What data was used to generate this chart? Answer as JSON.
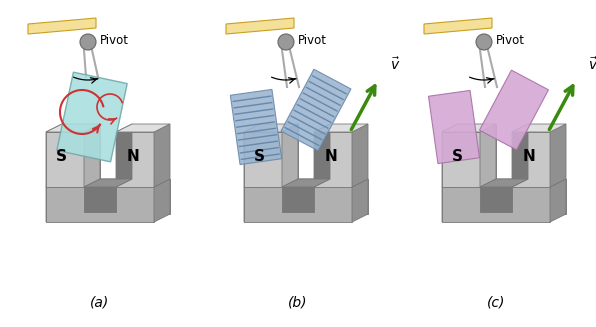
{
  "bg_color": "#ffffff",
  "pivot_bar_color": "#f5e099",
  "string_color": "#aaaaaa",
  "ball_color": "#999999",
  "top_color": "#e0e0e0",
  "front_color": "#c8c8c8",
  "side_color": "#b0b0b0",
  "dark_color": "#909090",
  "inner_color": "#787878",
  "bob_a_color": "#a8dede",
  "bob_a_edge": "#70a8a8",
  "eddy_color": "#cc3333",
  "bob_b_color": "#9ab4d0",
  "bob_b_stripe": "#6688aa",
  "bob_c_color": "#d4a8d4",
  "bob_c_edge": "#a870a8",
  "arrow_color": "#3a8a10",
  "titles": [
    "(a)",
    "(b)",
    "(c)"
  ],
  "pivot_text": "Pivot",
  "S_label": "S",
  "N_label": "N"
}
